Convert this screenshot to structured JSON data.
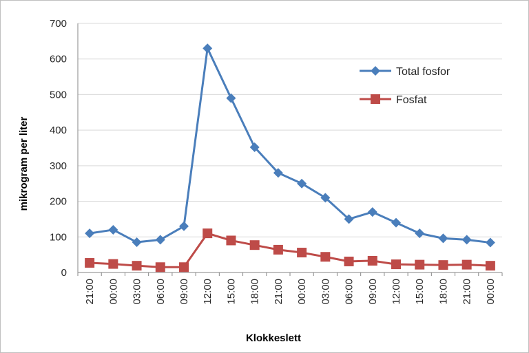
{
  "chart_data": {
    "type": "line",
    "title": "",
    "xlabel": "Klokkeslett",
    "ylabel": "mikrogram per liter",
    "ylim": [
      0,
      700
    ],
    "yticks": [
      0,
      100,
      200,
      300,
      400,
      500,
      600,
      700
    ],
    "grid": "horizontal",
    "legend_position": "right",
    "categories": [
      "21:00",
      "00:00",
      "03:00",
      "06:00",
      "09:00",
      "12:00",
      "15:00",
      "18:00",
      "21:00",
      "00:00",
      "03:00",
      "06:00",
      "09:00",
      "12:00",
      "15:00",
      "18:00",
      "21:00",
      "00:00"
    ],
    "series": [
      {
        "name": "Total fosfor",
        "color": "#4a7ebb",
        "marker": "diamond",
        "values": [
          110,
          120,
          85,
          92,
          130,
          630,
          490,
          352,
          280,
          250,
          210,
          150,
          170,
          140,
          110,
          96,
          92,
          84
        ]
      },
      {
        "name": "Fosfat",
        "color": "#be4b48",
        "marker": "square",
        "values": [
          27,
          24,
          19,
          15,
          15,
          110,
          90,
          77,
          64,
          56,
          44,
          31,
          33,
          23,
          22,
          21,
          22,
          19
        ]
      }
    ]
  }
}
